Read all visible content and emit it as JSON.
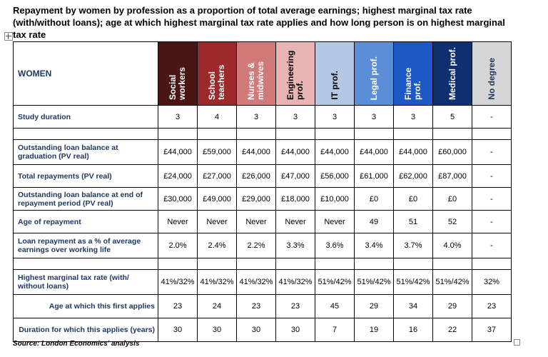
{
  "title": "Repayment by women by profession as a proportion of total average earnings; highest marginal tax rate (with/without loans); age at which highest marginal tax rate applies and how long person is on highest marginal tax rate",
  "header_label": "WOMEN",
  "columns": [
    {
      "label": "Social workers",
      "bg": "#4a1515",
      "fg": "#ffffff"
    },
    {
      "label": "School teachers",
      "bg": "#9c2a2a",
      "fg": "#ffffff"
    },
    {
      "label": "Nurses & midwives",
      "bg": "#d07a7a",
      "fg": "#ffffff"
    },
    {
      "label": "Engineering prof.",
      "bg": "#e8b4b4",
      "fg": "#000000"
    },
    {
      "label": "IT prof.",
      "bg": "#b4c8e4",
      "fg": "#000000"
    },
    {
      "label": "Legal prof.",
      "bg": "#5b8ed6",
      "fg": "#ffffff"
    },
    {
      "label": "Finance prof.",
      "bg": "#1e57c6",
      "fg": "#ffffff"
    },
    {
      "label": "Medical prof.",
      "bg": "#0f2f6f",
      "fg": "#ffffff"
    },
    {
      "label": "No degree",
      "bg": "#d6d6d6",
      "fg": "#1f3864"
    }
  ],
  "rows": [
    {
      "label": "Study duration",
      "values": [
        "3",
        "4",
        "3",
        "3",
        "3",
        "3",
        "3",
        "5",
        "-"
      ]
    },
    {
      "label": "",
      "values": [
        "",
        "",
        "",
        "",
        "",
        "",
        "",
        "",
        ""
      ]
    },
    {
      "label": "Outstanding loan balance at graduation (PV real)",
      "values": [
        "£44,000",
        "£59,000",
        "£44,000",
        "£44,000",
        "£44,000",
        "£44,000",
        "£44,000",
        "£60,000",
        "-"
      ]
    },
    {
      "label": "Total repayments (PV real)",
      "values": [
        "£24,000",
        "£27,000",
        "£26,000",
        "£47,000",
        "£56,000",
        "£61,000",
        "£62,000",
        "£87,000",
        "-"
      ]
    },
    {
      "label": "Outstanding loan balance at end of repayment period (PV real)",
      "values": [
        "£30,000",
        "£49,000",
        "£29,000",
        "£18,000",
        "£10,000",
        "£0",
        "£0",
        "£0",
        "-"
      ]
    },
    {
      "label": "Age of repayment",
      "values": [
        "Never",
        "Never",
        "Never",
        "Never",
        "Never",
        "49",
        "51",
        "52",
        "-"
      ]
    },
    {
      "label": "Loan repayment as a % of average earnings over working life",
      "values": [
        "2.0%",
        "2.4%",
        "2.2%",
        "3.3%",
        "3.6%",
        "3.4%",
        "3.7%",
        "4.0%",
        "-"
      ]
    },
    {
      "label": "",
      "values": [
        "",
        "",
        "",
        "",
        "",
        "",
        "",
        "",
        ""
      ]
    },
    {
      "label": "Highest marginal tax rate (with/ without loans)",
      "values": [
        "41%/32%",
        "41%/32%",
        "41%/32%",
        "41%/32%",
        "51%/42%",
        "51%/42%",
        "51%/42%",
        "51%/42%",
        "32%"
      ]
    },
    {
      "label": "Age at which this first applies",
      "indent": true,
      "values": [
        "23",
        "24",
        "23",
        "23",
        "45",
        "29",
        "34",
        "29",
        "23"
      ]
    },
    {
      "label": "Duration for which this applies (years)",
      "indent": true,
      "values": [
        "30",
        "30",
        "30",
        "30",
        "7",
        "19",
        "16",
        "22",
        "37"
      ]
    }
  ],
  "source": "Source: London Economics' analysis"
}
